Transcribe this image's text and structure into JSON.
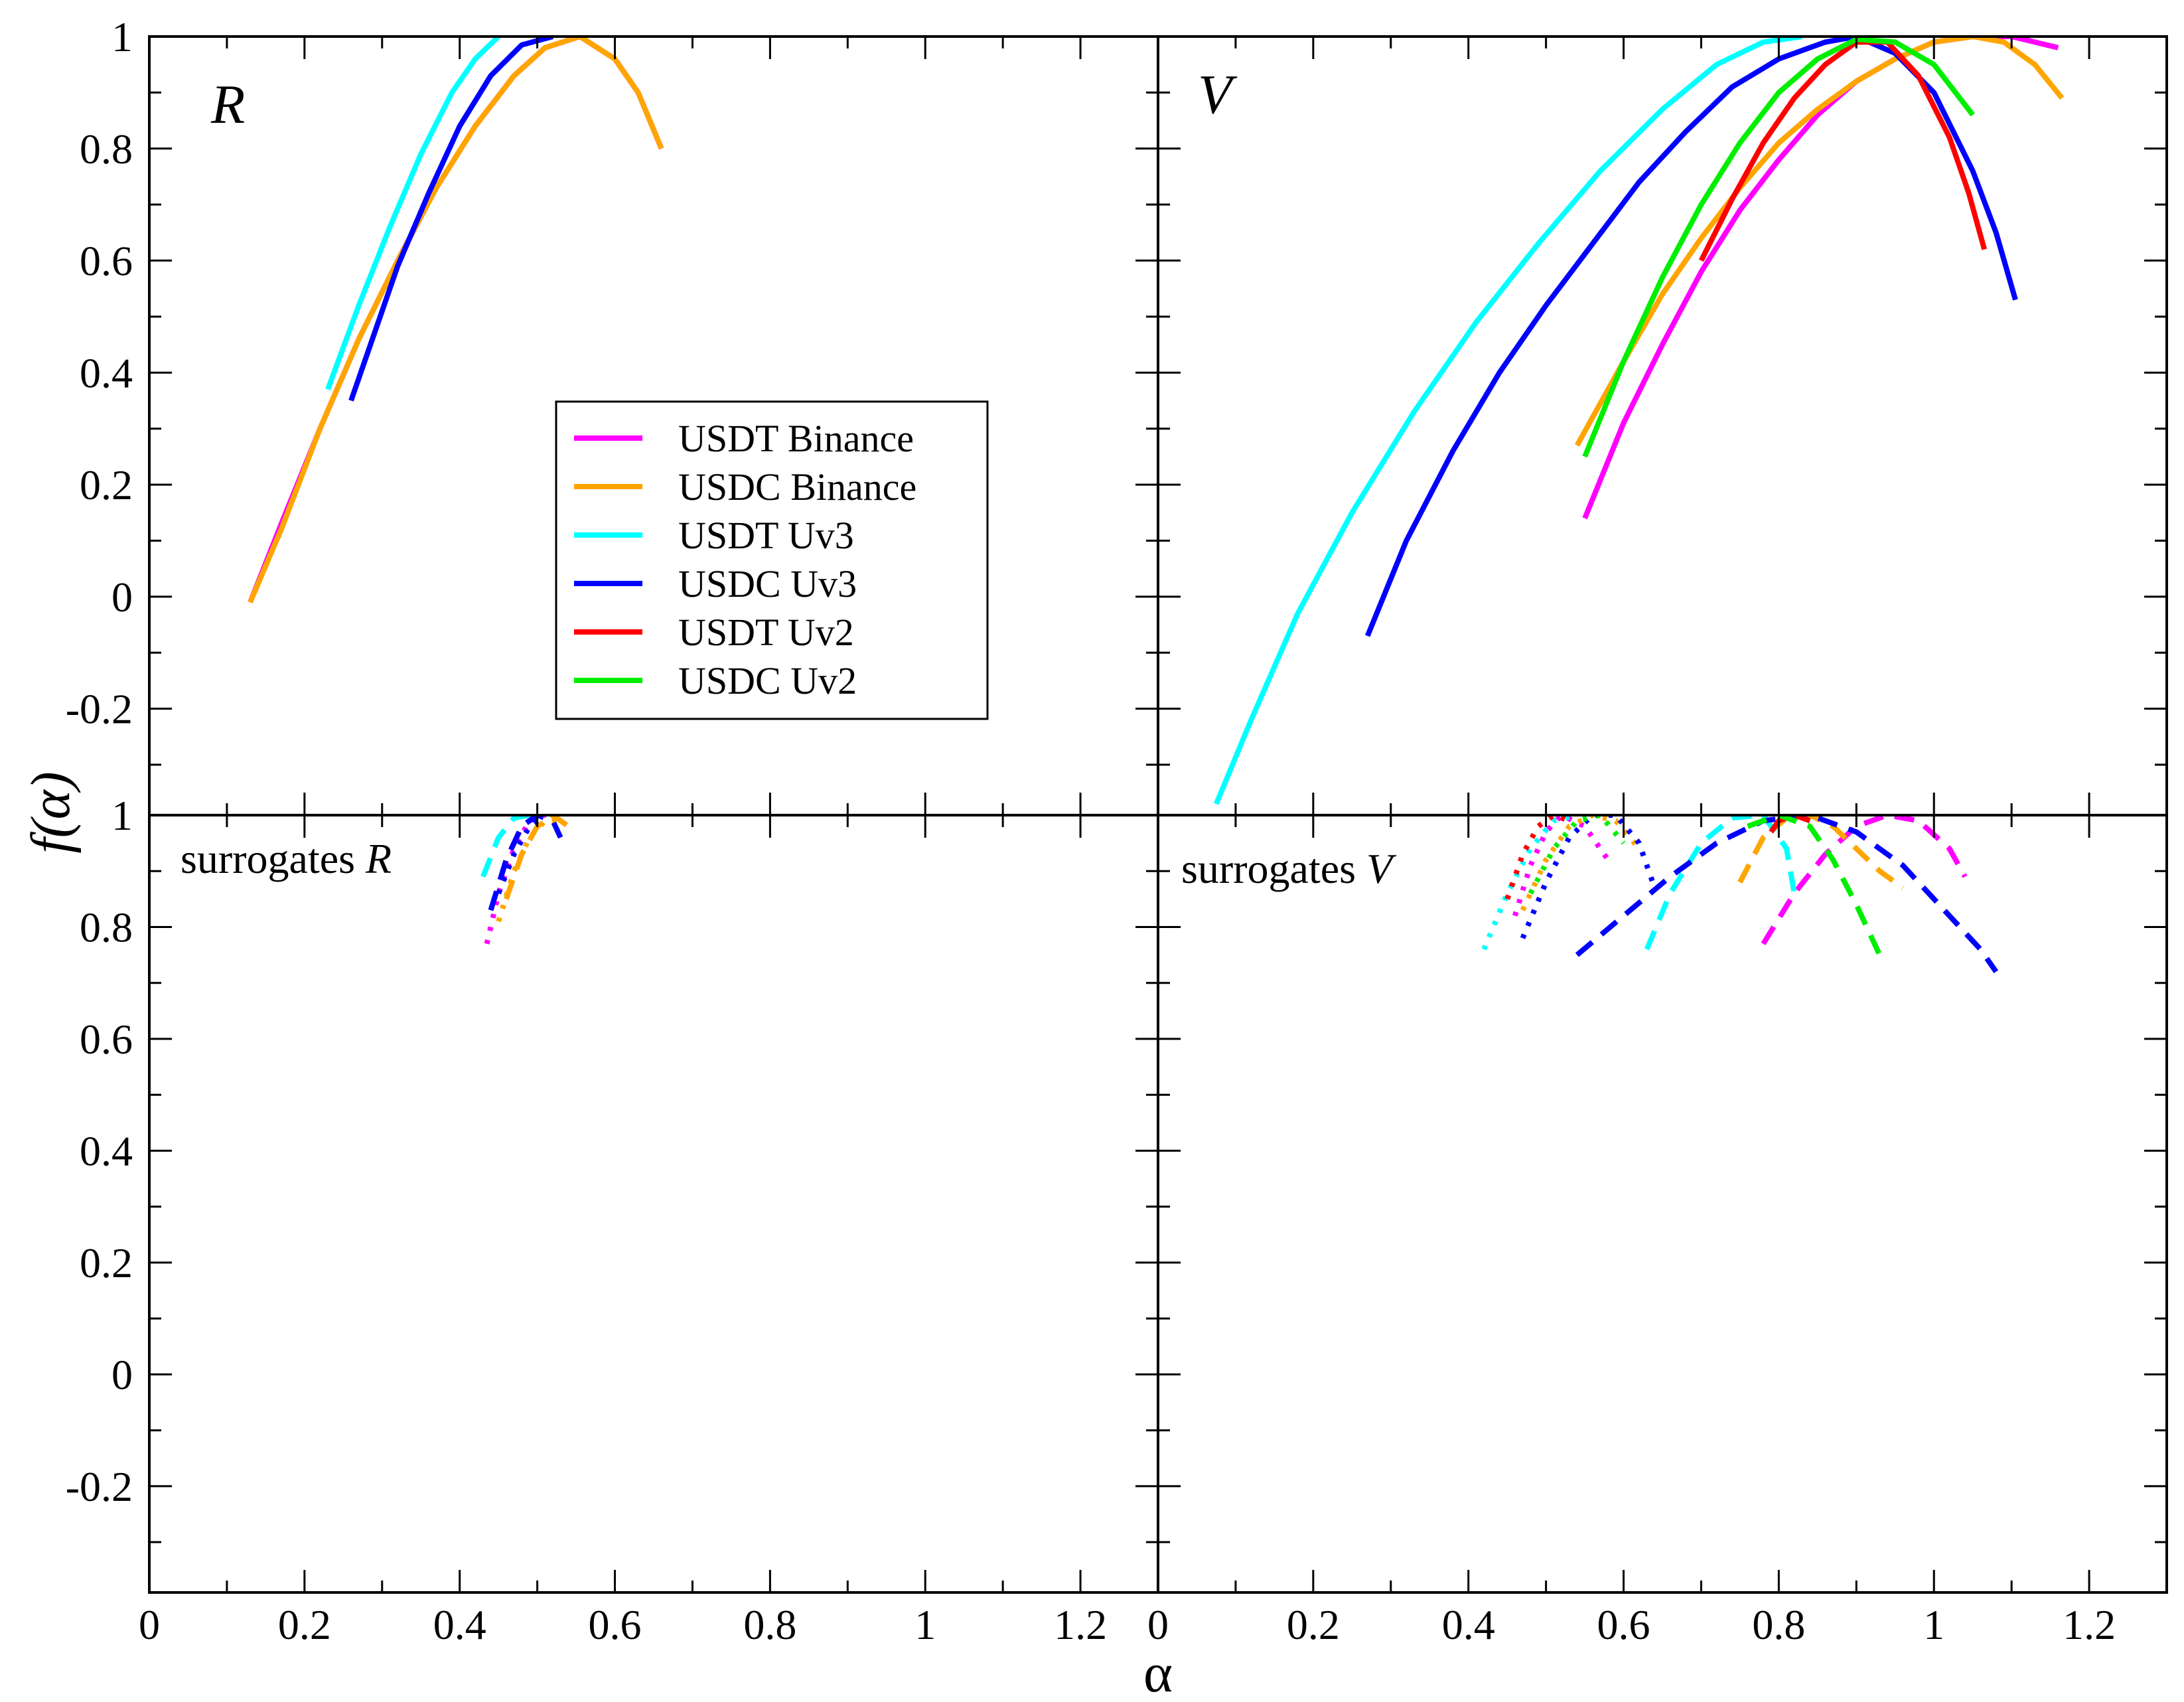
{
  "chart_data": {
    "type": "line",
    "xlabel": "α",
    "ylabel": "f(α)",
    "xlim": [
      0,
      1.3
    ],
    "ylim_top": [
      -0.39,
      1.0
    ],
    "ylim_bottom": [
      -0.39,
      1.0
    ],
    "x_tick_labels": [
      "0",
      "0.2",
      "0.4",
      "0.6",
      "0.8",
      "1",
      "1.2"
    ],
    "x_tick_values": [
      0,
      0.2,
      0.4,
      0.6,
      0.8,
      1.0,
      1.2
    ],
    "y_tick_labels": [
      "1",
      "0.8",
      "0.6",
      "0.4",
      "0.2",
      "0",
      "-0.2"
    ],
    "y_tick_values": [
      1.0,
      0.8,
      0.6,
      0.4,
      0.2,
      0.0,
      -0.2
    ],
    "legend": {
      "location": "upper-left panel, center",
      "entries": [
        {
          "label": "USDT Binance",
          "color": "#ff00ff"
        },
        {
          "label": "USDC Binance",
          "color": "#ffa500"
        },
        {
          "label": "USDT Uv3",
          "color": "#00ffff"
        },
        {
          "label": "USDC Uv3",
          "color": "#0000ff"
        },
        {
          "label": "USDT Uv2",
          "color": "#ff0000"
        },
        {
          "label": "USDC Uv2",
          "color": "#00ee00"
        }
      ]
    },
    "panels": [
      {
        "id": "R",
        "label": "R",
        "style": "solid",
        "series": [
          {
            "name": "USDT Binance",
            "color": "#ff00ff",
            "x": [
              0.13,
              0.17,
              0.22,
              0.27,
              0.32,
              0.37,
              0.42,
              0.47,
              0.51,
              0.555,
              0.6,
              0.63,
              0.66
            ],
            "y": [
              -0.01,
              0.13,
              0.3,
              0.46,
              0.6,
              0.73,
              0.84,
              0.93,
              0.98,
              1.0,
              0.96,
              0.9,
              0.8
            ]
          },
          {
            "name": "USDC Binance",
            "color": "#ffa500",
            "x": [
              0.13,
              0.17,
              0.22,
              0.27,
              0.32,
              0.37,
              0.42,
              0.47,
              0.51,
              0.555,
              0.6,
              0.63,
              0.66
            ],
            "y": [
              -0.01,
              0.12,
              0.3,
              0.46,
              0.6,
              0.73,
              0.84,
              0.93,
              0.98,
              1.0,
              0.96,
              0.9,
              0.8
            ]
          },
          {
            "name": "USDT Uv3",
            "color": "#00ffff",
            "x": [
              0.23,
              0.27,
              0.31,
              0.35,
              0.39,
              0.42,
              0.45
            ],
            "y": [
              0.37,
              0.52,
              0.66,
              0.79,
              0.9,
              0.96,
              1.0
            ]
          },
          {
            "name": "USDC Uv3",
            "color": "#0000ff",
            "x": [
              0.26,
              0.29,
              0.32,
              0.36,
              0.4,
              0.44,
              0.48,
              0.52
            ],
            "y": [
              0.35,
              0.47,
              0.59,
              0.72,
              0.84,
              0.93,
              0.985,
              1.0
            ]
          }
        ]
      },
      {
        "id": "V",
        "label": "V",
        "style": "solid",
        "series": [
          {
            "name": "USDT Binance",
            "color": "#ff00ff",
            "x": [
              0.55,
              0.6,
              0.65,
              0.7,
              0.75,
              0.8,
              0.85,
              0.9,
              0.95,
              1.0,
              1.05,
              1.1,
              1.16
            ],
            "y": [
              0.14,
              0.31,
              0.45,
              0.58,
              0.69,
              0.78,
              0.86,
              0.92,
              0.96,
              0.99,
              1.0,
              1.0,
              0.98
            ]
          },
          {
            "name": "USDC Binance",
            "color": "#ffa500",
            "x": [
              0.54,
              0.6,
              0.65,
              0.7,
              0.75,
              0.8,
              0.85,
              0.9,
              0.95,
              1.0,
              1.05,
              1.09,
              1.13,
              1.165
            ],
            "y": [
              0.27,
              0.42,
              0.54,
              0.64,
              0.73,
              0.81,
              0.87,
              0.92,
              0.96,
              0.99,
              1.0,
              0.99,
              0.95,
              0.89
            ]
          },
          {
            "name": "USDT Uv3",
            "color": "#00ffff",
            "x": [
              0.075,
              0.12,
              0.18,
              0.25,
              0.33,
              0.41,
              0.49,
              0.57,
              0.65,
              0.72,
              0.78,
              0.83
            ],
            "y": [
              -0.37,
              -0.22,
              -0.03,
              0.15,
              0.33,
              0.49,
              0.63,
              0.76,
              0.87,
              0.95,
              0.99,
              1.0
            ]
          },
          {
            "name": "USDC Uv3",
            "color": "#0000ff",
            "x": [
              0.27,
              0.32,
              0.38,
              0.44,
              0.5,
              0.56,
              0.62,
              0.68,
              0.74,
              0.8,
              0.86,
              0.9,
              0.95,
              1.0,
              1.05,
              1.08,
              1.105
            ],
            "y": [
              -0.07,
              0.1,
              0.26,
              0.4,
              0.52,
              0.63,
              0.74,
              0.83,
              0.91,
              0.96,
              0.99,
              1.0,
              0.97,
              0.9,
              0.76,
              0.65,
              0.53
            ]
          },
          {
            "name": "USDT Uv2",
            "color": "#ff0000",
            "x": [
              0.7,
              0.74,
              0.78,
              0.82,
              0.86,
              0.9,
              0.94,
              0.98,
              1.02,
              1.045,
              1.065
            ],
            "y": [
              0.6,
              0.71,
              0.81,
              0.89,
              0.95,
              0.99,
              0.99,
              0.93,
              0.82,
              0.72,
              0.62
            ]
          },
          {
            "name": "USDC Uv2",
            "color": "#00ee00",
            "x": [
              0.55,
              0.6,
              0.65,
              0.7,
              0.75,
              0.8,
              0.85,
              0.9,
              0.95,
              1.0,
              1.05
            ],
            "y": [
              0.25,
              0.42,
              0.57,
              0.7,
              0.81,
              0.9,
              0.96,
              0.995,
              0.99,
              0.95,
              0.86
            ]
          }
        ]
      },
      {
        "id": "surrogates R",
        "label": "surrogates",
        "label_italic": "R",
        "style": "surrogate",
        "series": [
          {
            "name": "USDT Binance dotted",
            "color": "#ff00ff",
            "style": "dotted",
            "x": [
              0.435,
              0.45,
              0.47,
              0.49,
              0.51
            ],
            "y": [
              0.77,
              0.86,
              0.94,
              0.99,
              1.0
            ]
          },
          {
            "name": "USDT Binance dashed",
            "color": "#ff00ff",
            "style": "dashed",
            "x": [
              0.44,
              0.46,
              0.48,
              0.5
            ],
            "y": [
              0.83,
              0.92,
              0.98,
              1.0
            ]
          },
          {
            "name": "USDC Binance dotted",
            "color": "#ffa500",
            "style": "dotted",
            "x": [
              0.45,
              0.47,
              0.49,
              0.51,
              0.53
            ],
            "y": [
              0.81,
              0.9,
              0.96,
              0.99,
              0.99
            ]
          },
          {
            "name": "USDC Binance dashed",
            "color": "#ffa500",
            "style": "dashed",
            "x": [
              0.46,
              0.48,
              0.5,
              0.52,
              0.54
            ],
            "y": [
              0.85,
              0.93,
              0.98,
              1.0,
              0.98
            ]
          },
          {
            "name": "USDT Uv3 dashed",
            "color": "#00ffff",
            "style": "dashed",
            "x": [
              0.43,
              0.45,
              0.47,
              0.49
            ],
            "y": [
              0.89,
              0.96,
              0.995,
              1.0
            ]
          },
          {
            "name": "USDC Uv3 dashed",
            "color": "#0000ff",
            "style": "dashed",
            "x": [
              0.44,
              0.46,
              0.48,
              0.5,
              0.52,
              0.53
            ],
            "y": [
              0.83,
              0.92,
              0.98,
              1.0,
              0.99,
              0.96
            ]
          },
          {
            "name": "USDC Uv3 dotted",
            "color": "#0000ff",
            "style": "dotted",
            "x": [
              0.45,
              0.47,
              0.49,
              0.51
            ],
            "y": [
              0.86,
              0.93,
              0.98,
              1.0
            ]
          }
        ]
      },
      {
        "id": "surrogates V",
        "label": "surrogates",
        "label_italic": "V",
        "style": "surrogate",
        "series": [
          {
            "name": "USDT Binance dotted",
            "color": "#ff00ff",
            "style": "dotted",
            "x": [
              0.46,
              0.48,
              0.5,
              0.52,
              0.55,
              0.58
            ],
            "y": [
              0.82,
              0.91,
              0.97,
              1.0,
              0.98,
              0.92
            ]
          },
          {
            "name": "USDT Binance dashed",
            "color": "#ff00ff",
            "style": "dashed",
            "x": [
              0.78,
              0.82,
              0.86,
              0.9,
              0.94,
              0.98,
              1.02,
              1.04
            ],
            "y": [
              0.77,
              0.86,
              0.93,
              0.98,
              1.0,
              0.99,
              0.94,
              0.89
            ]
          },
          {
            "name": "USDC Binance dotted",
            "color": "#ffa500",
            "style": "dotted",
            "x": [
              0.47,
              0.5,
              0.53,
              0.56,
              0.59,
              0.62
            ],
            "y": [
              0.83,
              0.92,
              0.98,
              1.0,
              0.99,
              0.94
            ]
          },
          {
            "name": "USDC Binance dashed",
            "color": "#ffa500",
            "style": "dashed",
            "x": [
              0.75,
              0.78,
              0.81,
              0.84,
              0.87,
              0.9,
              0.93,
              0.96
            ],
            "y": [
              0.88,
              0.96,
              0.995,
              1.0,
              0.98,
              0.94,
              0.9,
              0.87
            ]
          },
          {
            "name": "USDT Uv3 dotted",
            "color": "#00ffff",
            "style": "dotted",
            "x": [
              0.42,
              0.45,
              0.48,
              0.51,
              0.54
            ],
            "y": [
              0.76,
              0.86,
              0.94,
              0.99,
              1.0
            ]
          },
          {
            "name": "USDT Uv3 dashed",
            "color": "#00ffff",
            "style": "dashed",
            "x": [
              0.63,
              0.66,
              0.7,
              0.74,
              0.78,
              0.81,
              0.82
            ],
            "y": [
              0.76,
              0.86,
              0.95,
              0.995,
              1.0,
              0.94,
              0.86
            ]
          },
          {
            "name": "USDC Uv3 dotted",
            "color": "#0000ff",
            "style": "dotted",
            "x": [
              0.47,
              0.5,
              0.53,
              0.56,
              0.59,
              0.62,
              0.64
            ],
            "y": [
              0.78,
              0.88,
              0.96,
              1.0,
              1.0,
              0.95,
              0.87
            ]
          },
          {
            "name": "USDC Uv3 dashed",
            "color": "#0000ff",
            "style": "dashed",
            "x": [
              0.54,
              0.6,
              0.66,
              0.72,
              0.78,
              0.84,
              0.9,
              0.96,
              1.02,
              1.06,
              1.08
            ],
            "y": [
              0.75,
              0.82,
              0.89,
              0.95,
              0.99,
              1.0,
              0.97,
              0.91,
              0.82,
              0.76,
              0.72
            ]
          },
          {
            "name": "USDT Uv2 dotted",
            "color": "#ff0000",
            "style": "dotted",
            "x": [
              0.45,
              0.47,
              0.49,
              0.51,
              0.53
            ],
            "y": [
              0.85,
              0.93,
              0.98,
              1.0,
              0.99
            ]
          },
          {
            "name": "USDT Uv2 dashed",
            "color": "#ff0000",
            "style": "dashed",
            "x": [
              0.79,
              0.8,
              0.82,
              0.84
            ],
            "y": [
              0.97,
              0.99,
              1.0,
              0.99
            ]
          },
          {
            "name": "USDC Uv2 dotted",
            "color": "#00ee00",
            "style": "dotted",
            "x": [
              0.48,
              0.51,
              0.54,
              0.57,
              0.6
            ],
            "y": [
              0.86,
              0.94,
              0.99,
              1.0,
              0.95
            ]
          },
          {
            "name": "USDC Uv2 dashed",
            "color": "#00ee00",
            "style": "dashed",
            "x": [
              0.76,
              0.8,
              0.84,
              0.87,
              0.9,
              0.93
            ],
            "y": [
              0.98,
              1.0,
              0.98,
              0.92,
              0.84,
              0.75
            ]
          }
        ]
      }
    ]
  }
}
